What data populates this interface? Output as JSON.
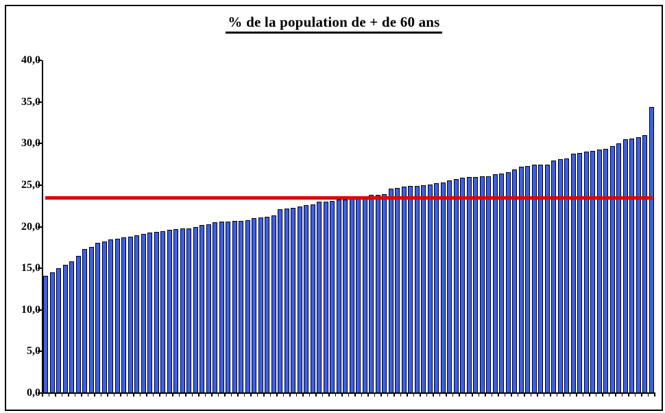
{
  "chart_data": {
    "type": "bar",
    "title": "% de la population de + de 60 ans",
    "xlabel": "",
    "ylabel": "",
    "ylim": [
      0,
      40
    ],
    "ytick_step": 5,
    "grid": "off",
    "legend": "none",
    "number_format": "fr-comma",
    "x_tick_labels_visible": false,
    "yticks": [
      {
        "value": 0,
        "label": "0,0"
      },
      {
        "value": 5,
        "label": "5,0"
      },
      {
        "value": 10,
        "label": "10,0"
      },
      {
        "value": 15,
        "label": "15,0"
      },
      {
        "value": 20,
        "label": "20,0"
      },
      {
        "value": 25,
        "label": "25,0"
      },
      {
        "value": 30,
        "label": "30,0"
      },
      {
        "value": 35,
        "label": "35,0"
      },
      {
        "value": 40,
        "label": "40,0"
      }
    ],
    "values": [
      14.1,
      14.5,
      15.0,
      15.4,
      15.8,
      16.5,
      17.3,
      17.6,
      18.1,
      18.2,
      18.5,
      18.6,
      18.7,
      18.8,
      19.0,
      19.1,
      19.3,
      19.4,
      19.5,
      19.6,
      19.7,
      19.8,
      19.8,
      20.0,
      20.2,
      20.3,
      20.5,
      20.6,
      20.6,
      20.7,
      20.7,
      20.8,
      21.0,
      21.1,
      21.2,
      21.4,
      22.1,
      22.2,
      22.3,
      22.4,
      22.6,
      22.7,
      23.0,
      23.0,
      23.1,
      23.3,
      23.3,
      23.4,
      23.4,
      23.7,
      23.8,
      23.8,
      23.9,
      24.6,
      24.7,
      24.8,
      24.9,
      24.9,
      25.0,
      25.1,
      25.2,
      25.3,
      25.6,
      25.7,
      25.9,
      26.0,
      26.0,
      26.1,
      26.1,
      26.3,
      26.4,
      26.6,
      26.9,
      27.2,
      27.3,
      27.5,
      27.5,
      27.5,
      28.0,
      28.1,
      28.2,
      28.8,
      28.9,
      29.0,
      29.1,
      29.3,
      29.4,
      29.7,
      30.0,
      30.5,
      30.6,
      30.8,
      31.0,
      34.4
    ],
    "bar_color": "#3C5FEC",
    "bar_border_color": "#000000",
    "axis_color": "#000000",
    "reference_line": {
      "value": 23.5,
      "color": "#E00000"
    }
  }
}
